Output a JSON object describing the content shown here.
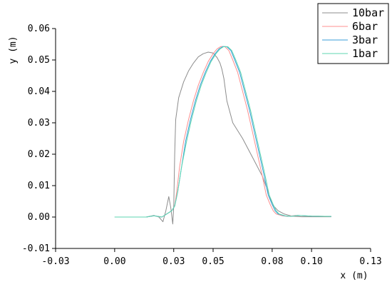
{
  "chart_data": {
    "type": "line",
    "title": "",
    "xlabel": "x (m)",
    "ylabel": "y (m)",
    "xlim": [
      -0.03,
      0.13
    ],
    "ylim": [
      -0.01,
      0.06
    ],
    "xticks": [
      -0.03,
      0.0,
      0.03,
      0.05,
      0.08,
      0.1,
      0.13
    ],
    "xtick_labels": [
      "-0.03",
      "0.00",
      "0.03",
      "0.05",
      "0.08",
      "0.10",
      "0.13"
    ],
    "yticks": [
      -0.01,
      0.0,
      0.01,
      0.02,
      0.03,
      0.04,
      0.05,
      0.06
    ],
    "ytick_labels": [
      "-0.01",
      "0.00",
      "0.01",
      "0.02",
      "0.03",
      "0.04",
      "0.05",
      "0.06"
    ],
    "grid": false,
    "legend_position": "top-right",
    "series": [
      {
        "name": "10bar",
        "color": "#8c8c8c",
        "x": [
          0.0,
          0.016,
          0.02,
          0.0225,
          0.0245,
          0.026,
          0.0275,
          0.0285,
          0.0295,
          0.03,
          0.0305,
          0.031,
          0.0325,
          0.035,
          0.0375,
          0.04,
          0.0425,
          0.045,
          0.0475,
          0.05,
          0.052,
          0.0535,
          0.0545,
          0.0555,
          0.057,
          0.06,
          0.065,
          0.07,
          0.075,
          0.078,
          0.08,
          0.083,
          0.086,
          0.09,
          0.095,
          0.1,
          0.11
        ],
        "y": [
          0.0,
          0.0,
          0.0005,
          0.0,
          -0.0015,
          0.002,
          0.0065,
          0.003,
          -0.0022,
          0.0035,
          0.02,
          0.031,
          0.038,
          0.043,
          0.0465,
          0.049,
          0.051,
          0.052,
          0.0525,
          0.0522,
          0.0508,
          0.049,
          0.047,
          0.044,
          0.037,
          0.03,
          0.025,
          0.019,
          0.013,
          0.008,
          0.004,
          0.002,
          0.001,
          0.0003,
          0.0001,
          0.0001,
          0.0001
        ]
      },
      {
        "name": "6bar",
        "color": "#ff8f8f",
        "x": [
          0.0,
          0.016,
          0.02,
          0.024,
          0.027,
          0.029,
          0.0305,
          0.0315,
          0.033,
          0.035,
          0.0375,
          0.04,
          0.0425,
          0.045,
          0.0475,
          0.05,
          0.052,
          0.054,
          0.056,
          0.058,
          0.06,
          0.0625,
          0.065,
          0.0675,
          0.07,
          0.0725,
          0.075,
          0.077,
          0.079,
          0.0805,
          0.082,
          0.085,
          0.088,
          0.092,
          0.1,
          0.11
        ],
        "y": [
          0.0,
          0.0,
          0.0004,
          0.0,
          0.0012,
          0.002,
          0.0035,
          0.008,
          0.016,
          0.024,
          0.031,
          0.037,
          0.042,
          0.046,
          0.0495,
          0.052,
          0.0535,
          0.0543,
          0.0542,
          0.053,
          0.05,
          0.046,
          0.04,
          0.034,
          0.027,
          0.02,
          0.013,
          0.007,
          0.004,
          0.002,
          0.001,
          0.0004,
          0.0002,
          0.0005,
          0.0003,
          0.0002
        ]
      },
      {
        "name": "3bar",
        "color": "#3a9ed8",
        "x": [
          0.0,
          0.016,
          0.02,
          0.024,
          0.027,
          0.029,
          0.0305,
          0.032,
          0.034,
          0.036,
          0.0385,
          0.041,
          0.0435,
          0.046,
          0.0485,
          0.051,
          0.053,
          0.055,
          0.057,
          0.059,
          0.061,
          0.0635,
          0.066,
          0.0685,
          0.071,
          0.0735,
          0.076,
          0.078,
          0.08,
          0.0815,
          0.083,
          0.086,
          0.089,
          0.093,
          0.1,
          0.11
        ],
        "y": [
          0.0,
          0.0,
          0.0004,
          0.0,
          0.0012,
          0.002,
          0.0035,
          0.008,
          0.016,
          0.024,
          0.031,
          0.037,
          0.042,
          0.046,
          0.0495,
          0.052,
          0.0535,
          0.0543,
          0.0542,
          0.053,
          0.05,
          0.046,
          0.04,
          0.034,
          0.027,
          0.02,
          0.013,
          0.007,
          0.004,
          0.002,
          0.001,
          0.0004,
          0.0002,
          0.0005,
          0.0003,
          0.0002
        ]
      },
      {
        "name": "1bar",
        "color": "#5dd6b0",
        "x": [
          0.0,
          0.016,
          0.02,
          0.024,
          0.027,
          0.029,
          0.0305,
          0.032,
          0.034,
          0.0365,
          0.039,
          0.0415,
          0.044,
          0.0465,
          0.049,
          0.0515,
          0.0535,
          0.0555,
          0.0575,
          0.0595,
          0.0615,
          0.064,
          0.0665,
          0.069,
          0.0715,
          0.074,
          0.0765,
          0.0785,
          0.0805,
          0.082,
          0.0835,
          0.0865,
          0.0895,
          0.093,
          0.1,
          0.11
        ],
        "y": [
          0.0,
          0.0,
          0.0004,
          0.0,
          0.0012,
          0.002,
          0.0035,
          0.008,
          0.016,
          0.024,
          0.031,
          0.037,
          0.042,
          0.046,
          0.0495,
          0.052,
          0.0535,
          0.0543,
          0.0542,
          0.053,
          0.05,
          0.046,
          0.04,
          0.034,
          0.027,
          0.02,
          0.013,
          0.007,
          0.004,
          0.002,
          0.001,
          0.0004,
          0.0002,
          0.0005,
          0.0003,
          0.0002
        ]
      }
    ]
  }
}
